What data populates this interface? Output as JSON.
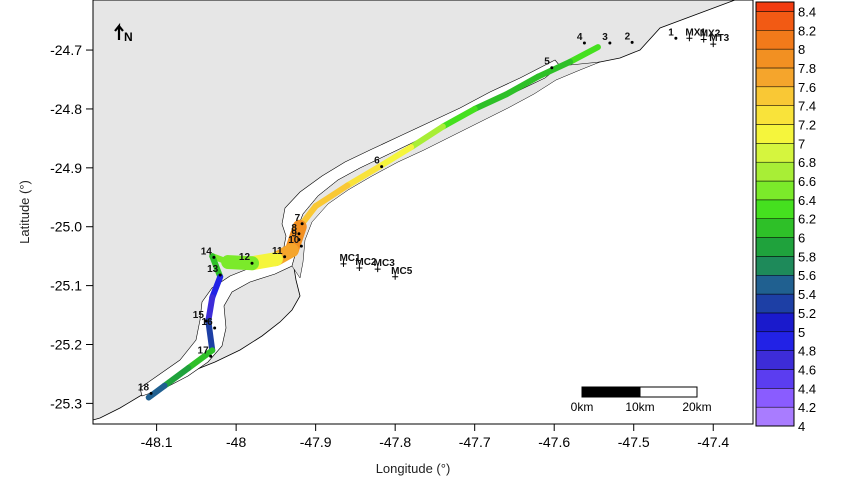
{
  "x_axis": {
    "label": "Longitude (°)",
    "ticks": [
      {
        "value": -48.1,
        "label": "-48.1"
      },
      {
        "value": -48.0,
        "label": "-48"
      },
      {
        "value": -47.9,
        "label": "-47.9"
      },
      {
        "value": -47.8,
        "label": "-47.8"
      },
      {
        "value": -47.7,
        "label": "-47.7"
      },
      {
        "value": -47.6,
        "label": "-47.6"
      },
      {
        "value": -47.5,
        "label": "-47.5"
      },
      {
        "value": -47.4,
        "label": "-47.4"
      }
    ]
  },
  "y_axis": {
    "label": "Latitude (°)",
    "ticks": [
      {
        "value": -24.7,
        "label": "-24.7"
      },
      {
        "value": -24.8,
        "label": "-24.8"
      },
      {
        "value": -24.9,
        "label": "-24.9"
      },
      {
        "value": -25.0,
        "label": "-25.0"
      },
      {
        "value": -25.1,
        "label": "-25.1"
      },
      {
        "value": -25.2,
        "label": "-25.2"
      },
      {
        "value": -25.3,
        "label": "-25.3"
      }
    ]
  },
  "north_arrow": {
    "label": "N",
    "icon": "north-arrow-icon"
  },
  "stations": [
    {
      "label": "1",
      "lon": -47.447,
      "lat": -24.68
    },
    {
      "label": "2",
      "lon": -47.502,
      "lat": -24.687
    },
    {
      "label": "3",
      "lon": -47.53,
      "lat": -24.688
    },
    {
      "label": "4",
      "lon": -47.562,
      "lat": -24.688
    },
    {
      "label": "5",
      "lon": -47.603,
      "lat": -24.73
    },
    {
      "label": "6",
      "lon": -47.817,
      "lat": -24.898
    },
    {
      "label": "7",
      "lon": -47.917,
      "lat": -24.995
    },
    {
      "label": "8",
      "lon": -47.921,
      "lat": -25.012
    },
    {
      "label": "9",
      "lon": -47.921,
      "lat": -25.022
    },
    {
      "label": "10",
      "lon": -47.918,
      "lat": -25.033
    },
    {
      "label": "11",
      "lon": -47.939,
      "lat": -25.051
    },
    {
      "label": "12",
      "lon": -47.98,
      "lat": -25.062
    },
    {
      "label": "13",
      "lon": -48.02,
      "lat": -25.082
    },
    {
      "label": "14",
      "lon": -48.028,
      "lat": -25.052
    },
    {
      "label": "15",
      "lon": -48.038,
      "lat": -25.16
    },
    {
      "label": "16",
      "lon": -48.027,
      "lat": -25.172
    },
    {
      "label": "17",
      "lon": -48.032,
      "lat": -25.22
    },
    {
      "label": "18",
      "lon": -48.107,
      "lat": -25.283
    }
  ],
  "offshore_points": [
    {
      "label": "MX1",
      "lon": -47.43,
      "lat": -24.68
    },
    {
      "label": "MX2",
      "lon": -47.412,
      "lat": -24.682
    },
    {
      "label": "MT3",
      "lon": -47.4,
      "lat": -24.69
    },
    {
      "label": "MC1",
      "lon": -47.865,
      "lat": -25.063
    },
    {
      "label": "MC2",
      "lon": -47.845,
      "lat": -25.07
    },
    {
      "label": "MC3",
      "lon": -47.822,
      "lat": -25.072
    },
    {
      "label": "MC5",
      "lon": -47.8,
      "lat": -25.085
    }
  ],
  "scale_bar": {
    "labels": [
      "0km",
      "10km",
      "20km"
    ]
  },
  "legend": {
    "min": 4.0,
    "max": 8.5,
    "step": 0.2,
    "labels": [
      "8.4",
      "8.2",
      "8",
      "7.8",
      "7.6",
      "7.4",
      "7.2",
      "7",
      "6.8",
      "6.6",
      "6.4",
      "6.2",
      "6",
      "5.8",
      "5.6",
      "5.4",
      "5.2",
      "5",
      "4.8",
      "4.6",
      "4.4",
      "4.2",
      "4"
    ],
    "colors": [
      "#a97cff",
      "#8a5cff",
      "#5b3df0",
      "#3d2cd8",
      "#2222e6",
      "#1a1acc",
      "#1d3fa5",
      "#206090",
      "#1e8a5a",
      "#1fa23c",
      "#2ec028",
      "#45e01f",
      "#7bea2a",
      "#a8ee36",
      "#d5f53e",
      "#f5f53c",
      "#f9e33a",
      "#f9c835",
      "#f5a52c",
      "#f29022",
      "#f27a1a",
      "#f25a14",
      "#f23b10",
      "#f01a0e"
    ]
  },
  "colors": {
    "land": "#e6e6e6",
    "water": "#ffffff",
    "outline": "#000000"
  }
}
